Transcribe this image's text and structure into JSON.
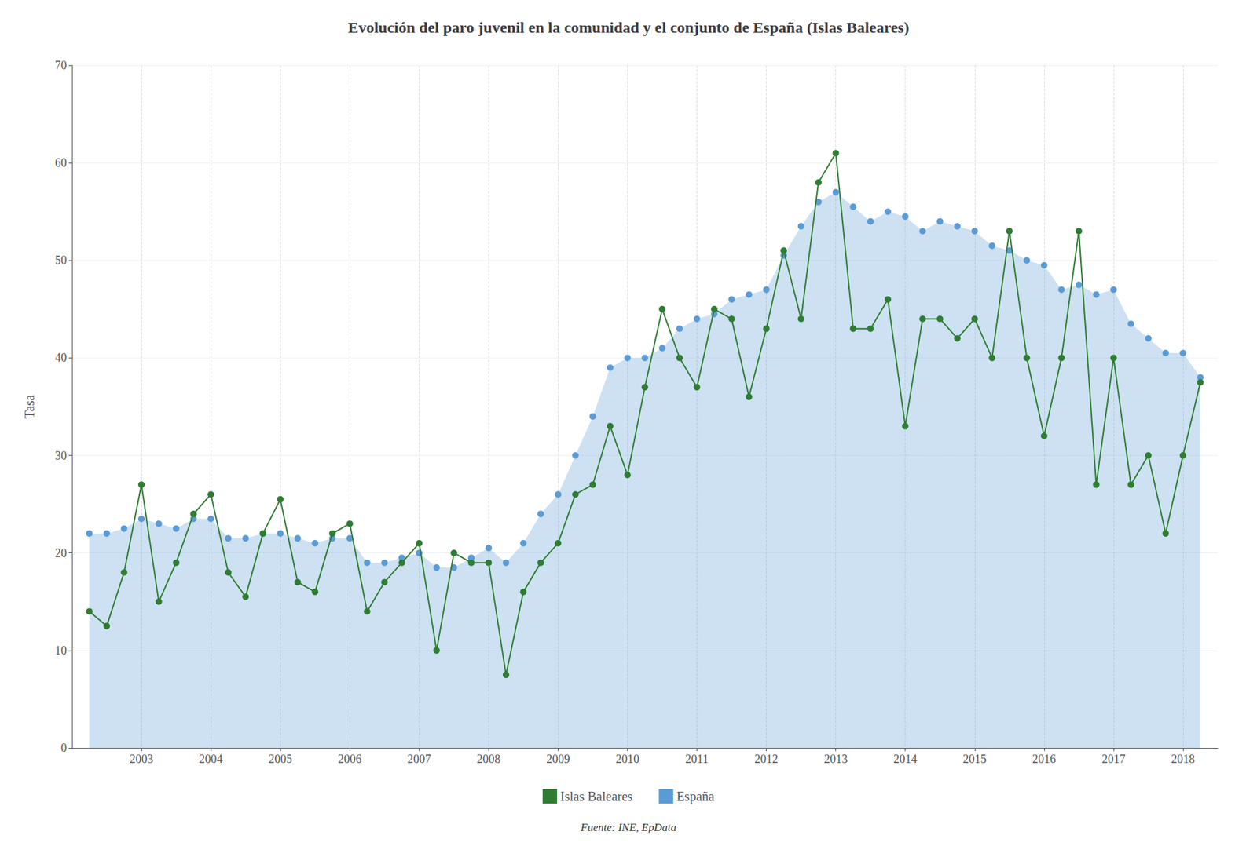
{
  "chart_data": {
    "type": "line",
    "title": "Evolución del paro juvenil en la comunidad y el conjunto de España (Islas Baleares)",
    "y_label": "Tasa",
    "annotations": [
      "Fuente: INE, EpData"
    ],
    "x": [
      2002.25,
      2002.5,
      2002.75,
      2003.0,
      2003.25,
      2003.5,
      2003.75,
      2004.0,
      2004.25,
      2004.5,
      2004.75,
      2005.0,
      2005.25,
      2005.5,
      2005.75,
      2006.0,
      2006.25,
      2006.5,
      2006.75,
      2007.0,
      2007.25,
      2007.5,
      2007.75,
      2008.0,
      2008.25,
      2008.5,
      2008.75,
      2009.0,
      2009.25,
      2009.5,
      2009.75,
      2010.0,
      2010.25,
      2010.5,
      2010.75,
      2011.0,
      2011.25,
      2011.5,
      2011.75,
      2012.0,
      2012.25,
      2012.5,
      2012.75,
      2013.0,
      2013.25,
      2013.5,
      2013.75,
      2014.0,
      2014.25,
      2014.5,
      2014.75,
      2015.0,
      2015.25,
      2015.5,
      2015.75,
      2016.0,
      2016.25,
      2016.5,
      2016.75,
      2017.0,
      2017.25,
      2017.5,
      2017.75,
      2018.0,
      2018.25
    ],
    "series": [
      {
        "name": "Islas Baleares",
        "color": "#2e7d32",
        "type": "line",
        "marker": "circle",
        "line_style": "solid",
        "values": [
          14.0,
          12.5,
          18.0,
          27.0,
          15.0,
          19.0,
          24.0,
          26.0,
          18.0,
          15.5,
          22.0,
          25.5,
          17.0,
          16.0,
          22.0,
          23.0,
          14.0,
          17.0,
          19.0,
          21.0,
          10.0,
          20.0,
          19.0,
          19.0,
          7.5,
          16.0,
          19.0,
          21.0,
          26.0,
          27.0,
          33.0,
          28.0,
          37.0,
          45.0,
          40.0,
          37.0,
          45.0,
          44.0,
          36.0,
          43.0,
          51.0,
          44.0,
          58.0,
          61.0,
          43.0,
          43.0,
          46.0,
          33.0,
          44.0,
          44.0,
          42.0,
          44.0,
          40.0,
          53.0,
          40.0,
          32.0,
          40.0,
          53.0,
          27.0,
          40.0,
          27.0,
          30.0,
          22.0,
          30.0,
          37.5
        ]
      },
      {
        "name": "España",
        "color": "#5b9bd5",
        "type": "area",
        "marker": "circle",
        "line_style": "none",
        "values": [
          22.0,
          22.0,
          22.5,
          23.5,
          23.0,
          22.5,
          23.5,
          23.5,
          21.5,
          21.5,
          22.0,
          22.0,
          21.5,
          21.0,
          21.5,
          21.5,
          19.0,
          19.0,
          19.5,
          20.0,
          18.5,
          18.5,
          19.5,
          20.5,
          19.0,
          21.0,
          24.0,
          26.0,
          30.0,
          34.0,
          39.0,
          40.0,
          40.0,
          41.0,
          43.0,
          44.0,
          44.5,
          46.0,
          46.5,
          47.0,
          50.5,
          53.5,
          56.0,
          57.0,
          55.5,
          54.0,
          55.0,
          54.5,
          53.0,
          54.0,
          53.5,
          53.0,
          51.5,
          51.0,
          50.0,
          49.5,
          47.0,
          47.5,
          46.5,
          47.0,
          43.5,
          42.0,
          40.5,
          40.5,
          38.0
        ]
      }
    ],
    "xlim": [
      2002.0,
      2018.5
    ],
    "xticks": [
      2003,
      2004,
      2005,
      2006,
      2007,
      2008,
      2009,
      2010,
      2011,
      2012,
      2013,
      2014,
      2015,
      2016,
      2017,
      2018
    ],
    "ylim": [
      0,
      70
    ],
    "yticks": [
      0,
      10,
      20,
      30,
      40,
      50,
      60,
      70
    ],
    "grid": true,
    "legend": "bottom"
  }
}
